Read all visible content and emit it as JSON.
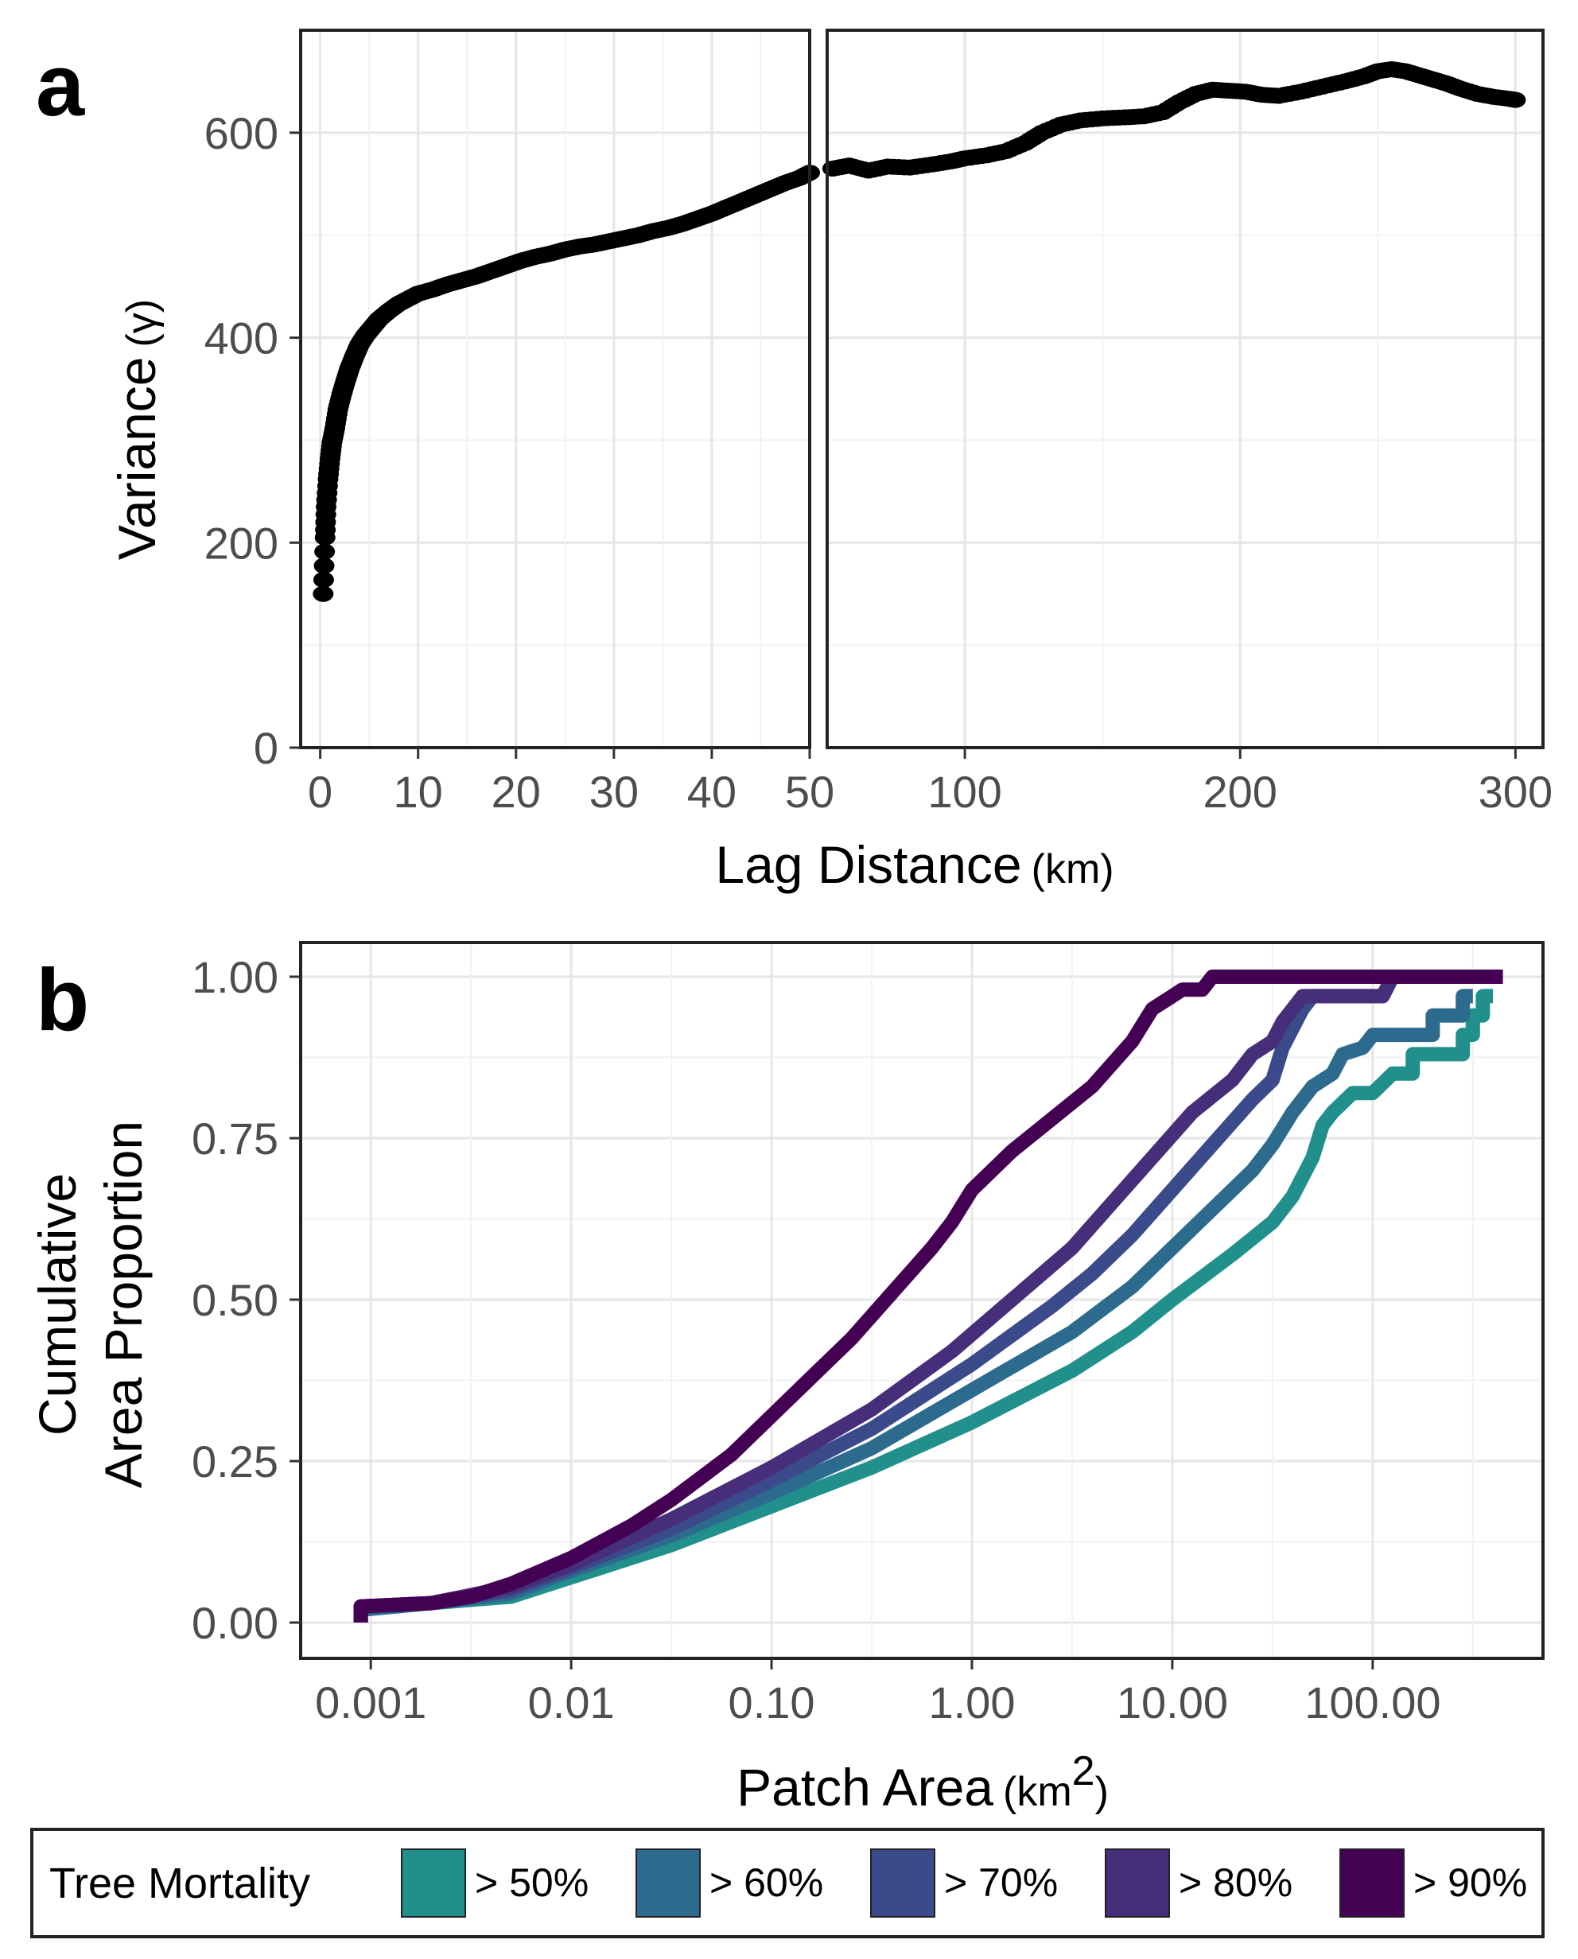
{
  "chart_data": [
    {
      "panel": "a",
      "type": "scatter",
      "xlabel": "Lag Distance",
      "xunit": "(km)",
      "ylabel": "Variance",
      "yunit": "(γ)",
      "ylim": [
        0,
        700
      ],
      "yticks": [
        0,
        200,
        400,
        600
      ],
      "facets": [
        {
          "xlim": [
            -2,
            50
          ],
          "xticks": [
            0,
            10,
            20,
            30,
            40,
            50
          ]
        },
        {
          "xlim": [
            50,
            310
          ],
          "xticks": [
            100,
            200,
            300
          ]
        }
      ],
      "points_short": [
        [
          0.3,
          150
        ],
        [
          0.5,
          205
        ],
        [
          0.6,
          235
        ],
        [
          0.8,
          262
        ],
        [
          1.0,
          282
        ],
        [
          1.2,
          298
        ],
        [
          1.5,
          312
        ],
        [
          1.8,
          330
        ],
        [
          2.2,
          345
        ],
        [
          2.6,
          358
        ],
        [
          3.0,
          370
        ],
        [
          3.5,
          382
        ],
        [
          4.0,
          393
        ],
        [
          4.6,
          402
        ],
        [
          5.3,
          410
        ],
        [
          6.0,
          418
        ],
        [
          7.0,
          426
        ],
        [
          8.0,
          433
        ],
        [
          9.0,
          438
        ],
        [
          10.0,
          443
        ],
        [
          11.5,
          447
        ],
        [
          13.0,
          452
        ],
        [
          14.5,
          456
        ],
        [
          16.0,
          460
        ],
        [
          17.5,
          465
        ],
        [
          19.0,
          470
        ],
        [
          20.5,
          475
        ],
        [
          22.0,
          479
        ],
        [
          23.5,
          482
        ],
        [
          25.0,
          486
        ],
        [
          26.5,
          489
        ],
        [
          28.0,
          491
        ],
        [
          29.5,
          494
        ],
        [
          31.0,
          497
        ],
        [
          32.5,
          500
        ],
        [
          34.0,
          504
        ],
        [
          35.5,
          507
        ],
        [
          37.0,
          511
        ],
        [
          38.5,
          516
        ],
        [
          40.0,
          521
        ],
        [
          41.5,
          527
        ],
        [
          43.0,
          533
        ],
        [
          44.5,
          539
        ],
        [
          46.0,
          545
        ],
        [
          47.5,
          551
        ],
        [
          49.0,
          556
        ],
        [
          50.0,
          561
        ]
      ],
      "points_long": [
        [
          52,
          565
        ],
        [
          58,
          568
        ],
        [
          65,
          563
        ],
        [
          72,
          567
        ],
        [
          80,
          566
        ],
        [
          88,
          569
        ],
        [
          95,
          572
        ],
        [
          100,
          575
        ],
        [
          108,
          578
        ],
        [
          115,
          582
        ],
        [
          122,
          590
        ],
        [
          128,
          600
        ],
        [
          135,
          608
        ],
        [
          142,
          612
        ],
        [
          150,
          614
        ],
        [
          158,
          615
        ],
        [
          165,
          616
        ],
        [
          172,
          620
        ],
        [
          178,
          630
        ],
        [
          184,
          638
        ],
        [
          190,
          642
        ],
        [
          196,
          641
        ],
        [
          202,
          640
        ],
        [
          208,
          637
        ],
        [
          214,
          636
        ],
        [
          222,
          640
        ],
        [
          230,
          645
        ],
        [
          238,
          650
        ],
        [
          245,
          655
        ],
        [
          250,
          660
        ],
        [
          255,
          662
        ],
        [
          260,
          660
        ],
        [
          265,
          656
        ],
        [
          270,
          652
        ],
        [
          275,
          648
        ],
        [
          280,
          643
        ],
        [
          286,
          638
        ],
        [
          292,
          635
        ],
        [
          298,
          633
        ],
        [
          300,
          632
        ]
      ]
    },
    {
      "panel": "b",
      "type": "line",
      "xscale": "log10",
      "xlabel": "Patch Area",
      "xunit_base": "(km",
      "xunit_sup": "2",
      "xunit_end": ")",
      "ylabel_line1": "Cumulative",
      "ylabel_line2": "Area Proportion",
      "ylim": [
        0,
        1
      ],
      "xlim_log10": [
        -3.35,
        2.85
      ],
      "xticks": [
        {
          "log10": -3,
          "label": "0.001"
        },
        {
          "log10": -2,
          "label": "0.01"
        },
        {
          "log10": -1,
          "label": "0.10"
        },
        {
          "log10": 0,
          "label": "1.00"
        },
        {
          "log10": 1,
          "label": "10.00"
        },
        {
          "log10": 2,
          "label": "100.00"
        }
      ],
      "yticks": [
        "0.00",
        "0.25",
        "0.50",
        "0.75",
        "1.00"
      ],
      "series": [
        {
          "name": "> 50%",
          "color": "#21908C",
          "points": [
            [
              -3.05,
              0.0
            ],
            [
              -3.05,
              0.02
            ],
            [
              -2.7,
              0.03
            ],
            [
              -2.3,
              0.04
            ],
            [
              -2.0,
              0.07
            ],
            [
              -1.5,
              0.12
            ],
            [
              -1.0,
              0.18
            ],
            [
              -0.5,
              0.24
            ],
            [
              0.0,
              0.31
            ],
            [
              0.5,
              0.39
            ],
            [
              0.8,
              0.45
            ],
            [
              1.0,
              0.5
            ],
            [
              1.3,
              0.57
            ],
            [
              1.5,
              0.62
            ],
            [
              1.6,
              0.66
            ],
            [
              1.7,
              0.72
            ],
            [
              1.75,
              0.77
            ],
            [
              1.8,
              0.79
            ],
            [
              1.9,
              0.82
            ],
            [
              2.0,
              0.82
            ],
            [
              2.1,
              0.85
            ],
            [
              2.2,
              0.85
            ],
            [
              2.2,
              0.88
            ],
            [
              2.45,
              0.88
            ],
            [
              2.45,
              0.91
            ],
            [
              2.5,
              0.91
            ],
            [
              2.5,
              0.94
            ],
            [
              2.55,
              0.94
            ],
            [
              2.55,
              0.97
            ],
            [
              2.6,
              0.97
            ]
          ]
        },
        {
          "name": "> 60%",
          "color": "#2D6B8E",
          "points": [
            [
              -3.05,
              0.0
            ],
            [
              -3.05,
              0.02
            ],
            [
              -2.7,
              0.03
            ],
            [
              -2.3,
              0.045
            ],
            [
              -2.0,
              0.08
            ],
            [
              -1.5,
              0.135
            ],
            [
              -1.0,
              0.2
            ],
            [
              -0.5,
              0.27
            ],
            [
              0.0,
              0.36
            ],
            [
              0.5,
              0.45
            ],
            [
              0.8,
              0.52
            ],
            [
              1.0,
              0.58
            ],
            [
              1.2,
              0.64
            ],
            [
              1.4,
              0.7
            ],
            [
              1.5,
              0.74
            ],
            [
              1.6,
              0.79
            ],
            [
              1.7,
              0.83
            ],
            [
              1.8,
              0.85
            ],
            [
              1.85,
              0.88
            ],
            [
              1.95,
              0.89
            ],
            [
              2.0,
              0.91
            ],
            [
              2.3,
              0.91
            ],
            [
              2.3,
              0.94
            ],
            [
              2.45,
              0.94
            ],
            [
              2.45,
              0.97
            ],
            [
              2.5,
              0.97
            ]
          ]
        },
        {
          "name": "> 70%",
          "color": "#3B4A8A",
          "points": [
            [
              -3.05,
              0.0
            ],
            [
              -3.05,
              0.025
            ],
            [
              -2.7,
              0.03
            ],
            [
              -2.3,
              0.05
            ],
            [
              -2.0,
              0.085
            ],
            [
              -1.5,
              0.145
            ],
            [
              -1.0,
              0.22
            ],
            [
              -0.5,
              0.3
            ],
            [
              0.0,
              0.4
            ],
            [
              0.4,
              0.49
            ],
            [
              0.6,
              0.54
            ],
            [
              0.8,
              0.6
            ],
            [
              1.0,
              0.67
            ],
            [
              1.2,
              0.74
            ],
            [
              1.4,
              0.81
            ],
            [
              1.5,
              0.84
            ],
            [
              1.55,
              0.89
            ],
            [
              1.6,
              0.92
            ],
            [
              1.65,
              0.95
            ],
            [
              1.7,
              0.97
            ],
            [
              2.05,
              0.97
            ],
            [
              2.1,
              1.0
            ]
          ]
        },
        {
          "name": "> 80%",
          "color": "#462E7A",
          "points": [
            [
              -3.05,
              0.0
            ],
            [
              -3.05,
              0.025
            ],
            [
              -2.7,
              0.03
            ],
            [
              -2.3,
              0.055
            ],
            [
              -2.0,
              0.09
            ],
            [
              -1.5,
              0.16
            ],
            [
              -1.0,
              0.24
            ],
            [
              -0.5,
              0.33
            ],
            [
              -0.1,
              0.42
            ],
            [
              0.2,
              0.5
            ],
            [
              0.5,
              0.58
            ],
            [
              0.7,
              0.65
            ],
            [
              0.9,
              0.72
            ],
            [
              1.1,
              0.79
            ],
            [
              1.3,
              0.84
            ],
            [
              1.4,
              0.88
            ],
            [
              1.5,
              0.9
            ],
            [
              1.55,
              0.93
            ],
            [
              1.6,
              0.95
            ],
            [
              1.65,
              0.97
            ],
            [
              2.05,
              0.97
            ],
            [
              2.1,
              1.0
            ]
          ]
        },
        {
          "name": "> 90%",
          "color": "#440154",
          "points": [
            [
              -3.05,
              0.0
            ],
            [
              -3.05,
              0.025
            ],
            [
              -2.7,
              0.03
            ],
            [
              -2.5,
              0.04
            ],
            [
              -2.3,
              0.06
            ],
            [
              -2.0,
              0.1
            ],
            [
              -1.7,
              0.15
            ],
            [
              -1.5,
              0.19
            ],
            [
              -1.2,
              0.26
            ],
            [
              -1.0,
              0.32
            ],
            [
              -0.8,
              0.38
            ],
            [
              -0.6,
              0.44
            ],
            [
              -0.4,
              0.51
            ],
            [
              -0.2,
              0.58
            ],
            [
              -0.1,
              0.62
            ],
            [
              0.0,
              0.67
            ],
            [
              0.1,
              0.7
            ],
            [
              0.2,
              0.73
            ],
            [
              0.4,
              0.78
            ],
            [
              0.6,
              0.83
            ],
            [
              0.8,
              0.9
            ],
            [
              0.9,
              0.95
            ],
            [
              1.0,
              0.97
            ],
            [
              1.05,
              0.98
            ],
            [
              1.15,
              0.98
            ],
            [
              1.2,
              1.0
            ],
            [
              2.65,
              1.0
            ]
          ]
        }
      ]
    }
  ],
  "legend": {
    "title": "Tree Mortality",
    "items": [
      {
        "label": "> 50%",
        "color": "#21908C"
      },
      {
        "label": "> 60%",
        "color": "#2D6B8E"
      },
      {
        "label": "> 70%",
        "color": "#3B4A8A"
      },
      {
        "label": "> 80%",
        "color": "#462E7A"
      },
      {
        "label": "> 90%",
        "color": "#440154"
      }
    ]
  },
  "labels": {
    "panel_a": "a",
    "panel_b": "b"
  }
}
